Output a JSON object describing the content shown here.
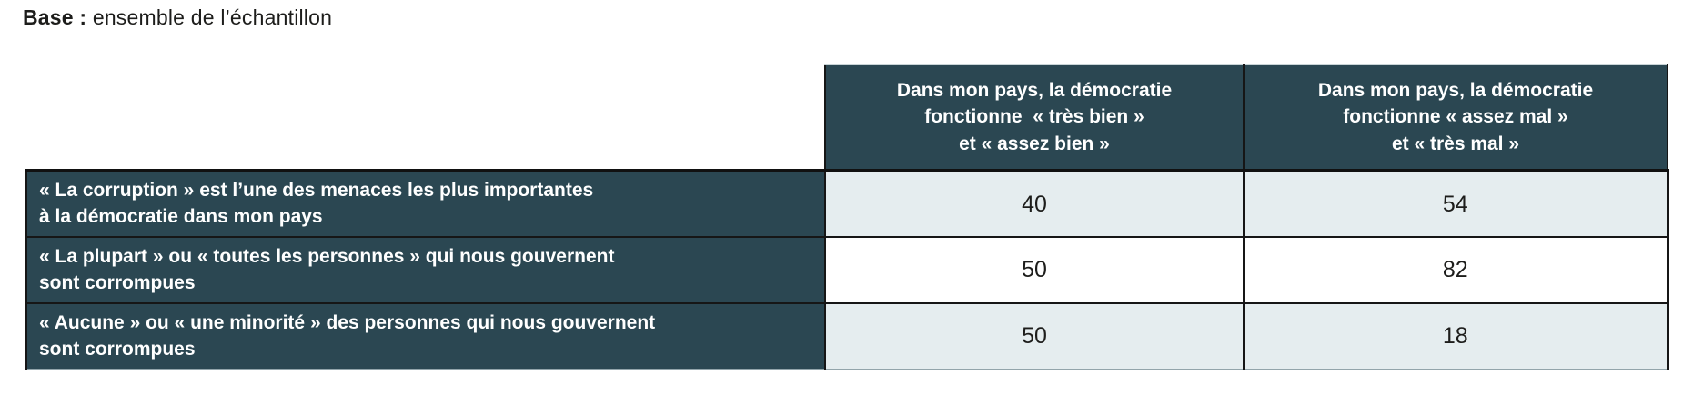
{
  "title": {
    "bold": "Base :",
    "rest": " ensemble de l’échantillon"
  },
  "colors": {
    "header_bg": "#2b4752",
    "row_label_bg": "#2b4752",
    "cell_bg_shaded": "#e5edef",
    "cell_bg_plain": "#ffffff",
    "border": "#161616",
    "header_text": "#ffffff",
    "value_text": "#1d1d1b"
  },
  "table": {
    "column_headers": [
      {
        "lines": [
          "Dans mon pays, la démocratie",
          "fonctionne  « très bien »",
          "et « assez bien »"
        ]
      },
      {
        "lines": [
          "Dans mon pays, la démocratie",
          "fonctionne « assez mal »",
          "et « très mal »"
        ]
      }
    ],
    "rows": [
      {
        "label_lines": [
          "« La corruption » est l’une des menaces les plus importantes",
          "à la démocratie dans mon pays"
        ],
        "values": [
          {
            "text": "40",
            "bold": false
          },
          {
            "text": "54",
            "bold": true
          }
        ]
      },
      {
        "label_lines": [
          "« La plupart » ou « toutes les personnes » qui nous gouvernent",
          "sont corrompues"
        ],
        "values": [
          {
            "text": "50",
            "bold": false
          },
          {
            "text": "82",
            "bold": true
          }
        ]
      },
      {
        "label_lines": [
          "« Aucune » ou « une minorité » des personnes qui nous gouvernent",
          "sont corrompues"
        ],
        "values": [
          {
            "text": "50",
            "bold": true
          },
          {
            "text": "18",
            "bold": false
          }
        ]
      }
    ]
  },
  "chart_data": {
    "type": "table",
    "title": "Base : ensemble de l’échantillon",
    "columns": [
      "Dans mon pays, la démocratie fonctionne « très bien » et « assez bien »",
      "Dans mon pays, la démocratie fonctionne « assez mal » et « très mal »"
    ],
    "rows": [
      {
        "label": "« La corruption » est l’une des menaces les plus importantes à la démocratie dans mon pays",
        "values": [
          40,
          54
        ],
        "emphasized": [
          false,
          true
        ]
      },
      {
        "label": "« La plupart » ou « toutes les personnes » qui nous gouvernent sont corrompues",
        "values": [
          50,
          82
        ],
        "emphasized": [
          false,
          true
        ]
      },
      {
        "label": "« Aucune » ou « une minorité » des personnes qui nous gouvernent sont corrompues",
        "values": [
          50,
          18
        ],
        "emphasized": [
          true,
          false
        ]
      }
    ]
  }
}
